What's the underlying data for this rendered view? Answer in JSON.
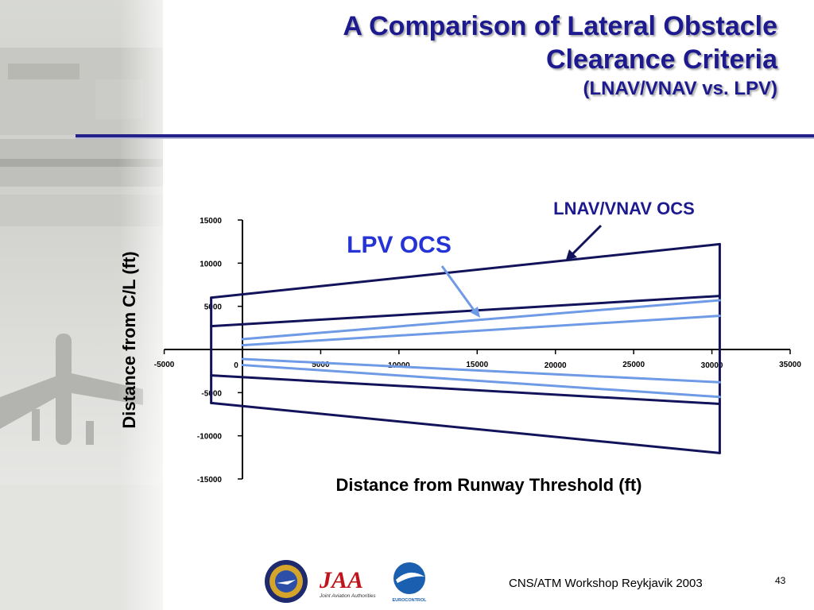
{
  "title": {
    "line1": "A Comparison of Lateral Obstacle",
    "line2": "Clearance Criteria",
    "line3": "(LNAV/VNAV vs. LPV)"
  },
  "colors": {
    "title": "#1d1a8f",
    "lnav_line": "#13135c",
    "lpv_line": "#6e9ae6",
    "lpv_label": "#2533d6"
  },
  "chart_data": {
    "type": "line",
    "xlabel": "Distance from Runway Threshold (ft)",
    "ylabel": "Distance from C/L (ft)",
    "xlim": [
      -5000,
      35000
    ],
    "ylim": [
      -15000,
      15000
    ],
    "grid": false,
    "x_ticks": [
      {
        "value": -5000,
        "label": "-5000"
      },
      {
        "value": 0,
        "label": "0"
      },
      {
        "value": 5000,
        "label": "5000"
      },
      {
        "value": 10000,
        "label": "10000"
      },
      {
        "value": 15000,
        "label": "15000"
      },
      {
        "value": 20000,
        "label": "20000"
      },
      {
        "value": 25000,
        "label": "25000"
      },
      {
        "value": 30000,
        "label": "30000"
      },
      {
        "value": 35000,
        "label": "35000"
      }
    ],
    "y_ticks": [
      {
        "value": 15000,
        "label": "15000"
      },
      {
        "value": 10000,
        "label": "10000"
      },
      {
        "value": 5000,
        "label": "5000"
      },
      {
        "value": -5000,
        "label": "-5000"
      },
      {
        "value": -10000,
        "label": "-10000"
      },
      {
        "value": -15000,
        "label": "-15000"
      }
    ],
    "series": [
      {
        "name": "LNAV/VNAV OCS",
        "color": "#13135c",
        "segments": [
          {
            "x": [
              -2000,
              30500
            ],
            "y": [
              6000,
              12200
            ]
          },
          {
            "x": [
              -2000,
              30500
            ],
            "y": [
              2700,
              6200
            ]
          },
          {
            "x": [
              -2000,
              30500
            ],
            "y": [
              -3000,
              -6300
            ]
          },
          {
            "x": [
              -2000,
              30500
            ],
            "y": [
              -6200,
              -12000
            ]
          },
          {
            "x": [
              -2000,
              -2000
            ],
            "y": [
              6000,
              -6200
            ]
          },
          {
            "x": [
              30500,
              30500
            ],
            "y": [
              12200,
              -12000
            ]
          }
        ]
      },
      {
        "name": "LPV OCS",
        "color": "#6e9ae6",
        "segments": [
          {
            "x": [
              0,
              30500
            ],
            "y": [
              1200,
              5700
            ]
          },
          {
            "x": [
              0,
              30500
            ],
            "y": [
              500,
              3900
            ]
          },
          {
            "x": [
              0,
              30500
            ],
            "y": [
              -1100,
              -3800
            ]
          },
          {
            "x": [
              0,
              30500
            ],
            "y": [
              -1800,
              -5500
            ]
          }
        ]
      }
    ],
    "annotations": [
      {
        "text": "LNAV/VNAV OCS",
        "points_to_series": "LNAV/VNAV OCS"
      },
      {
        "text": "LPV OCS",
        "points_to_series": "LPV OCS"
      }
    ]
  },
  "footer": {
    "workshop": "CNS/ATM Workshop  Reykjavik 2003",
    "page_number": "43",
    "logos": [
      "faa-seal",
      "jaa-logo",
      "eurocontrol-logo"
    ],
    "logo_text": {
      "faa": "FEDERAL AVIATION ADMINISTRATION",
      "jaa": "JAA",
      "jaa_sub": "Joint Aviation Authorities",
      "eurocontrol": "EUROCONTROL"
    }
  }
}
